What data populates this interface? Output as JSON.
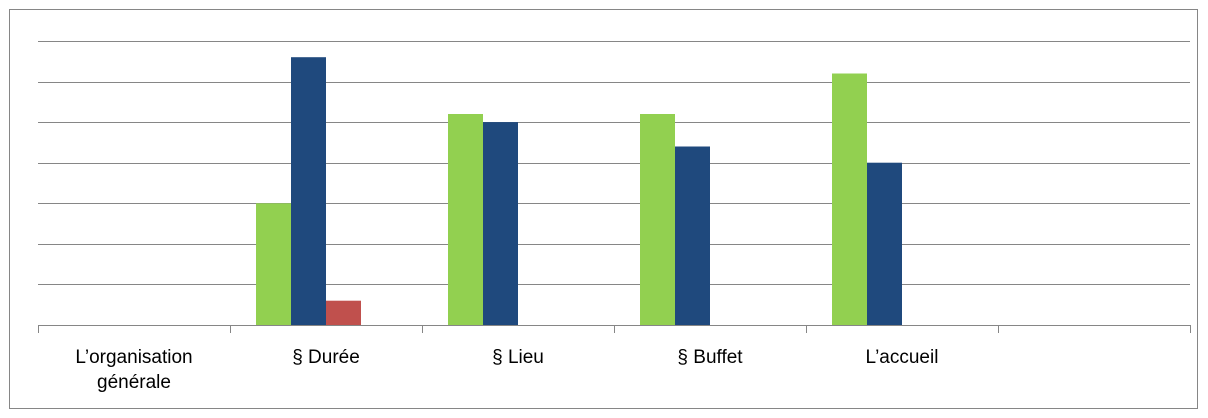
{
  "chart_data": {
    "type": "bar",
    "title": "",
    "xlabel": "",
    "ylabel": "",
    "ylim": [
      0,
      7
    ],
    "grid": true,
    "categories": [
      [
        "L’organisation",
        "générale"
      ],
      [
        "§ Durée"
      ],
      [
        "§ Lieu"
      ],
      [
        "§ Buffet"
      ],
      [
        "L’accueil"
      ],
      [
        ""
      ]
    ],
    "series": [
      {
        "color": "#92d050",
        "values": [
          0,
          3,
          5.2,
          5.2,
          6.2,
          0
        ]
      },
      {
        "color": "#1f497d",
        "values": [
          0,
          6.6,
          5,
          4.4,
          4,
          0
        ]
      },
      {
        "color": "#c0504d",
        "values": [
          0,
          0.6,
          0,
          0,
          0,
          0
        ]
      }
    ]
  }
}
